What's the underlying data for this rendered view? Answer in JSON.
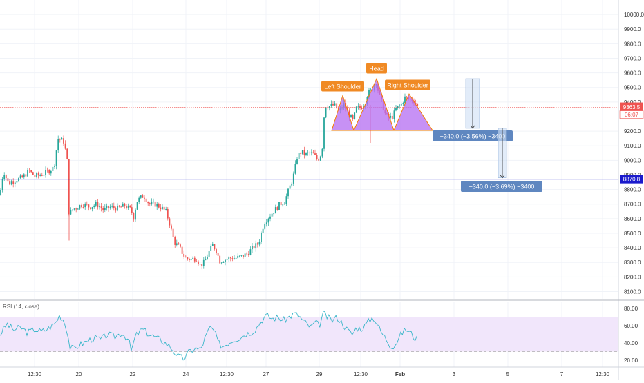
{
  "colors": {
    "up": "#26a69a",
    "down": "#ef5350",
    "pattern_fill": "#b46cf2",
    "pattern_stroke": "#f57c00",
    "label_bg": "#f08a24",
    "support_line": "#1a1acc",
    "price_line": "#ef5350",
    "measure_bg": "#5f87c0",
    "rsi_line": "#39b6c9",
    "rsi_band": "#f1e6fb"
  },
  "chart_data": {
    "type": "candlestick",
    "symbol_note": "",
    "y_axis": {
      "min": 8050,
      "max": 10100,
      "ticks": [
        10000.0,
        9900.0,
        9800.0,
        9700.0,
        9600.0,
        9500.0,
        9400.0,
        9200.0,
        9100.0,
        9000.0,
        8900.0,
        8800.0,
        8700.0,
        8600.0,
        8500.0,
        8400.0,
        8300.0,
        8200.0,
        8100.0
      ],
      "tick_labels": [
        "10000.0",
        "9900.0",
        "9800.0",
        "9700.0",
        "9600.0",
        "9500.0",
        "9400.0",
        "9200.0",
        "9100.0",
        "9000.0",
        "8900.0",
        "8800.0",
        "8700.0",
        "8600.0",
        "8500.0",
        "8400.0",
        "8300.0",
        "8200.0",
        "8100.0"
      ]
    },
    "x_axis": {
      "labels": [
        "12:30",
        "20",
        "22",
        "24",
        "12:30",
        "27",
        "29",
        "12:30",
        "Feb",
        "3",
        "5",
        "7",
        "12:30"
      ],
      "bold": [
        false,
        false,
        false,
        false,
        false,
        false,
        false,
        false,
        true,
        false,
        false,
        false,
        false
      ]
    },
    "price_path": [
      [
        0,
        8760
      ],
      [
        5,
        8930
      ],
      [
        12,
        8840
      ],
      [
        20,
        8860
      ],
      [
        32,
        8880
      ],
      [
        42,
        8930
      ],
      [
        50,
        8890
      ],
      [
        58,
        8900
      ],
      [
        68,
        8920
      ],
      [
        78,
        8950
      ],
      [
        84,
        9150
      ],
      [
        92,
        9130
      ],
      [
        97,
        9020
      ],
      [
        100,
        8620
      ],
      [
        104,
        8660
      ],
      [
        112,
        8680
      ],
      [
        120,
        8700
      ],
      [
        130,
        8680
      ],
      [
        140,
        8700
      ],
      [
        150,
        8660
      ],
      [
        160,
        8680
      ],
      [
        170,
        8670
      ],
      [
        180,
        8690
      ],
      [
        190,
        8660
      ],
      [
        193,
        8600
      ],
      [
        198,
        8720
      ],
      [
        208,
        8760
      ],
      [
        216,
        8700
      ],
      [
        224,
        8700
      ],
      [
        232,
        8680
      ],
      [
        240,
        8650
      ],
      [
        246,
        8560
      ],
      [
        252,
        8440
      ],
      [
        260,
        8400
      ],
      [
        268,
        8330
      ],
      [
        276,
        8320
      ],
      [
        284,
        8330
      ],
      [
        290,
        8280
      ],
      [
        296,
        8300
      ],
      [
        302,
        8370
      ],
      [
        308,
        8420
      ],
      [
        313,
        8380
      ],
      [
        318,
        8310
      ],
      [
        326,
        8320
      ],
      [
        334,
        8330
      ],
      [
        342,
        8330
      ],
      [
        350,
        8340
      ],
      [
        358,
        8360
      ],
      [
        366,
        8400
      ],
      [
        374,
        8430
      ],
      [
        382,
        8570
      ],
      [
        390,
        8620
      ],
      [
        398,
        8660
      ],
      [
        405,
        8700
      ],
      [
        412,
        8720
      ],
      [
        418,
        8800
      ],
      [
        424,
        8880
      ],
      [
        430,
        9020
      ],
      [
        436,
        9060
      ],
      [
        442,
        9040
      ],
      [
        448,
        9050
      ],
      [
        454,
        9040
      ],
      [
        460,
        9000
      ],
      [
        466,
        9060
      ],
      [
        470,
        9380
      ],
      [
        476,
        9370
      ],
      [
        484,
        9380
      ],
      [
        491,
        9330
      ],
      [
        497,
        9390
      ],
      [
        504,
        9320
      ],
      [
        511,
        9270
      ],
      [
        516,
        9360
      ],
      [
        522,
        9360
      ],
      [
        528,
        9390
      ],
      [
        532,
        9460
      ],
      [
        538,
        9480
      ],
      [
        544,
        9550
      ],
      [
        548,
        9460
      ],
      [
        553,
        9390
      ],
      [
        558,
        9310
      ],
      [
        563,
        9290
      ],
      [
        568,
        9300
      ],
      [
        574,
        9360
      ],
      [
        580,
        9380
      ],
      [
        586,
        9430
      ],
      [
        592,
        9420
      ],
      [
        599,
        9410
      ],
      [
        605,
        9363
      ]
    ],
    "current_price": {
      "value": 9363.5,
      "label": "9363.5",
      "countdown": "06:07"
    },
    "support": {
      "value": 8870.8,
      "label": "8870.8"
    },
    "pattern": {
      "name": "Head and Shoulders",
      "labels": {
        "left": "Left Shoulder",
        "head": "Head",
        "right": "Right Shoulder"
      },
      "neckline": 9205,
      "left_peak": 9445,
      "head_peak": 9560,
      "right_peak": 9455
    },
    "measurements": [
      {
        "label": "−340.0 (−3.56%) −3400",
        "from": 9560,
        "to": 9220
      },
      {
        "label": "−340.0 (−3.69%) −3400",
        "from": 9220,
        "to": 8880
      }
    ],
    "rsi": {
      "title": "RSI (14, close)",
      "ticks": [
        "80.00",
        "60.00",
        "40.00",
        "20.00"
      ],
      "tick_values": [
        80,
        60,
        40,
        20
      ],
      "upper": 70,
      "lower": 30,
      "ymin": 12,
      "ymax": 88,
      "path": [
        [
          0,
          50
        ],
        [
          10,
          62
        ],
        [
          20,
          55
        ],
        [
          30,
          58
        ],
        [
          40,
          52
        ],
        [
          50,
          56
        ],
        [
          60,
          53
        ],
        [
          70,
          57
        ],
        [
          80,
          63
        ],
        [
          86,
          72
        ],
        [
          92,
          67
        ],
        [
          97,
          55
        ],
        [
          101,
          35
        ],
        [
          106,
          33
        ],
        [
          116,
          38
        ],
        [
          126,
          42
        ],
        [
          136,
          46
        ],
        [
          146,
          44
        ],
        [
          156,
          50
        ],
        [
          166,
          47
        ],
        [
          176,
          52
        ],
        [
          186,
          44
        ],
        [
          190,
          30
        ],
        [
          196,
          48
        ],
        [
          206,
          56
        ],
        [
          216,
          50
        ],
        [
          226,
          46
        ],
        [
          236,
          42
        ],
        [
          246,
          36
        ],
        [
          252,
          30
        ],
        [
          258,
          24
        ],
        [
          266,
          22
        ],
        [
          274,
          30
        ],
        [
          282,
          34
        ],
        [
          290,
          32
        ],
        [
          298,
          48
        ],
        [
          304,
          58
        ],
        [
          310,
          54
        ],
        [
          316,
          40
        ],
        [
          322,
          36
        ],
        [
          330,
          40
        ],
        [
          338,
          44
        ],
        [
          346,
          46
        ],
        [
          354,
          50
        ],
        [
          362,
          52
        ],
        [
          370,
          56
        ],
        [
          378,
          66
        ],
        [
          386,
          72
        ],
        [
          394,
          68
        ],
        [
          402,
          70
        ],
        [
          410,
          66
        ],
        [
          418,
          70
        ],
        [
          426,
          74
        ],
        [
          432,
          72
        ],
        [
          438,
          66
        ],
        [
          444,
          62
        ],
        [
          450,
          58
        ],
        [
          456,
          64
        ],
        [
          462,
          60
        ],
        [
          468,
          74
        ],
        [
          474,
          70
        ],
        [
          480,
          66
        ],
        [
          488,
          70
        ],
        [
          496,
          62
        ],
        [
          504,
          54
        ],
        [
          510,
          50
        ],
        [
          516,
          58
        ],
        [
          522,
          56
        ],
        [
          528,
          60
        ],
        [
          534,
          66
        ],
        [
          540,
          70
        ],
        [
          546,
          62
        ],
        [
          552,
          52
        ],
        [
          558,
          46
        ],
        [
          564,
          38
        ],
        [
          570,
          36
        ],
        [
          576,
          44
        ],
        [
          582,
          52
        ],
        [
          588,
          56
        ],
        [
          594,
          52
        ],
        [
          600,
          46
        ],
        [
          605,
          44
        ]
      ]
    }
  }
}
